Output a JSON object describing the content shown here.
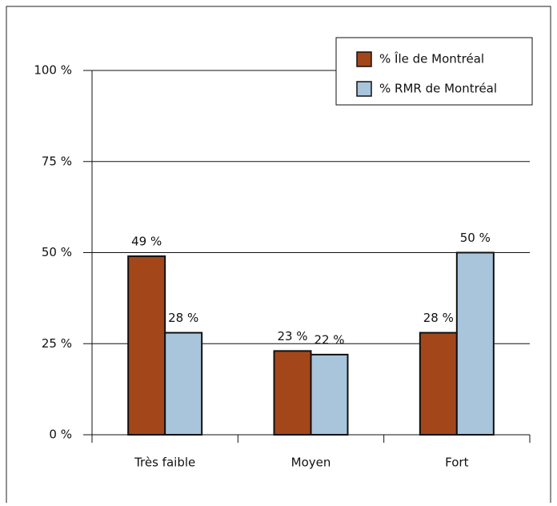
{
  "chart_data": {
    "type": "bar",
    "categories": [
      "Très faible",
      "Moyen",
      "Fort"
    ],
    "series": [
      {
        "name": "% Île de Montréal",
        "color": "#a3471a",
        "values": [
          49,
          23,
          28
        ],
        "value_labels": [
          "49 %",
          "23 %",
          "28 %"
        ]
      },
      {
        "name": "% RMR de Montréal",
        "color": "#a8c5dc",
        "values": [
          28,
          22,
          50
        ],
        "value_labels": [
          "28 %",
          "22 %",
          "50 %"
        ]
      }
    ],
    "ylim": [
      0,
      100
    ],
    "yticks": [
      {
        "value": 0,
        "label": "0 %"
      },
      {
        "value": 25,
        "label": "25 %"
      },
      {
        "value": 50,
        "label": "50 %"
      },
      {
        "value": 75,
        "label": "75 %"
      },
      {
        "value": 100,
        "label": "100 %"
      }
    ],
    "grid": true,
    "legend": "top-right"
  }
}
